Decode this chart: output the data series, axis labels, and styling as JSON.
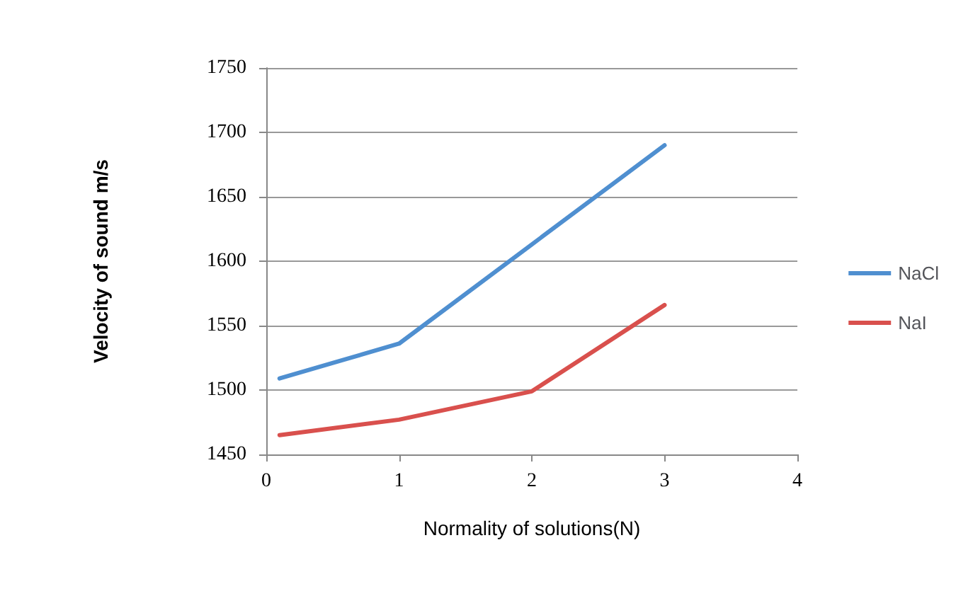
{
  "chart_data": {
    "type": "line",
    "xlabel": "Normality of solutions(N)",
    "ylabel": "Velocity of sound m/s",
    "x": [
      0.1,
      1,
      2,
      3
    ],
    "series": [
      {
        "name": "NaCl",
        "color": "#4f8fd0",
        "values": [
          1509,
          1536,
          1613,
          1690
        ]
      },
      {
        "name": "NaI",
        "color": "#d9504d",
        "values": [
          1465,
          1477,
          1499,
          1566
        ]
      }
    ],
    "xlim": [
      0,
      4
    ],
    "xticks": [
      0,
      1,
      2,
      3,
      4
    ],
    "ylim": [
      1450,
      1750
    ],
    "yticks": [
      1450,
      1500,
      1550,
      1600,
      1650,
      1700,
      1750
    ],
    "grid": "y",
    "legend": "right",
    "marker": "none",
    "line_style": "solid"
  }
}
